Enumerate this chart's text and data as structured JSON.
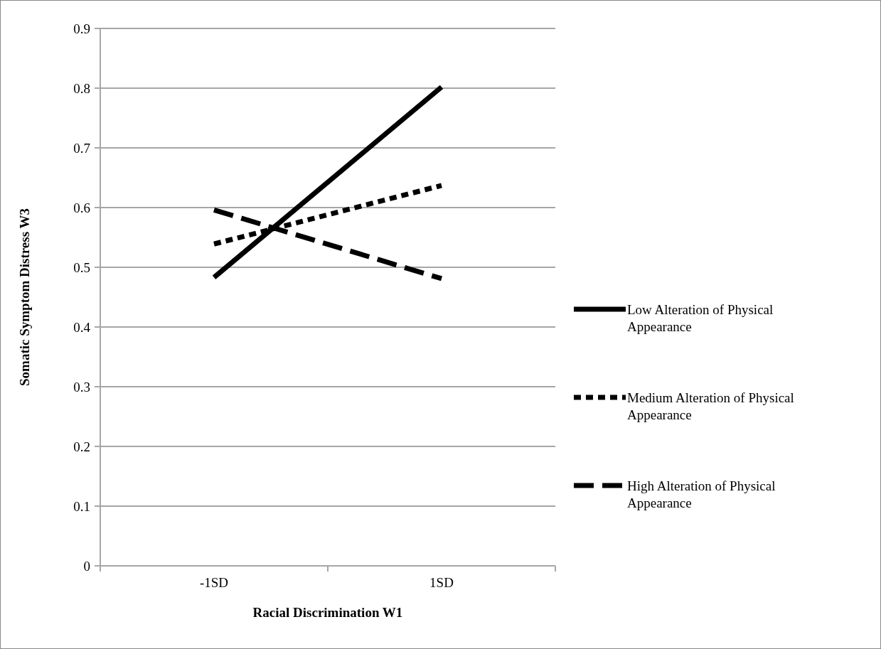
{
  "chart_data": {
    "type": "line",
    "xlabel": "Racial Discrimination W1",
    "ylabel": "Somatic Symptom Distress W3",
    "categories": [
      "-1SD",
      "1SD"
    ],
    "series": [
      {
        "name": "Low Alteration of Physical Appearance",
        "color": "#000000",
        "line_style": "solid",
        "values": [
          0.483,
          0.802
        ]
      },
      {
        "name": "Medium Alteration of Physical Appearance",
        "color": "#000000",
        "line_style": "dotted",
        "values": [
          0.539,
          0.637
        ]
      },
      {
        "name": "High Alteration of Physical Appearance",
        "color": "#000000",
        "line_style": "dashed",
        "values": [
          0.596,
          0.481
        ]
      }
    ],
    "ylim": [
      0,
      0.9
    ],
    "yticks": [
      0,
      0.1,
      0.2,
      0.3,
      0.4,
      0.5,
      0.6,
      0.7,
      0.8,
      0.9
    ],
    "grid": "y",
    "legend": "right",
    "marker": "none"
  }
}
